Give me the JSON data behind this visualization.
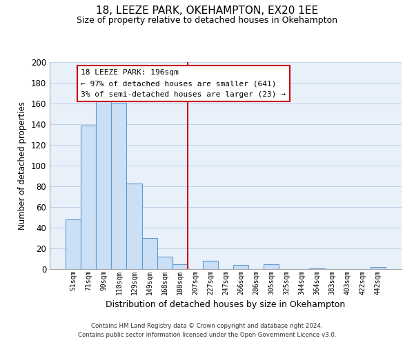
{
  "title": "18, LEEZE PARK, OKEHAMPTON, EX20 1EE",
  "subtitle": "Size of property relative to detached houses in Okehampton",
  "xlabel": "Distribution of detached houses by size in Okehampton",
  "ylabel": "Number of detached properties",
  "bar_labels": [
    "51sqm",
    "71sqm",
    "90sqm",
    "110sqm",
    "129sqm",
    "149sqm",
    "168sqm",
    "188sqm",
    "207sqm",
    "227sqm",
    "247sqm",
    "266sqm",
    "286sqm",
    "305sqm",
    "325sqm",
    "344sqm",
    "364sqm",
    "383sqm",
    "403sqm",
    "422sqm",
    "442sqm"
  ],
  "bar_values": [
    48,
    139,
    166,
    161,
    83,
    30,
    12,
    5,
    0,
    8,
    0,
    4,
    0,
    5,
    0,
    0,
    1,
    0,
    0,
    0,
    2
  ],
  "bar_color": "#cce0f5",
  "bar_edge_color": "#5b9bd5",
  "plot_bg_color": "#e8f0fa",
  "ylim": [
    0,
    200
  ],
  "yticks": [
    0,
    20,
    40,
    60,
    80,
    100,
    120,
    140,
    160,
    180,
    200
  ],
  "property_line_x": 7.5,
  "property_line_color": "#cc0000",
  "annotation_title": "18 LEEZE PARK: 196sqm",
  "annotation_line1": "← 97% of detached houses are smaller (641)",
  "annotation_line2": "3% of semi-detached houses are larger (23) →",
  "annotation_box_color": "#ffffff",
  "annotation_box_edge": "#cc0000",
  "footer_line1": "Contains HM Land Registry data © Crown copyright and database right 2024.",
  "footer_line2": "Contains public sector information licensed under the Open Government Licence v3.0.",
  "background_color": "#ffffff",
  "grid_color": "#b8cce4"
}
